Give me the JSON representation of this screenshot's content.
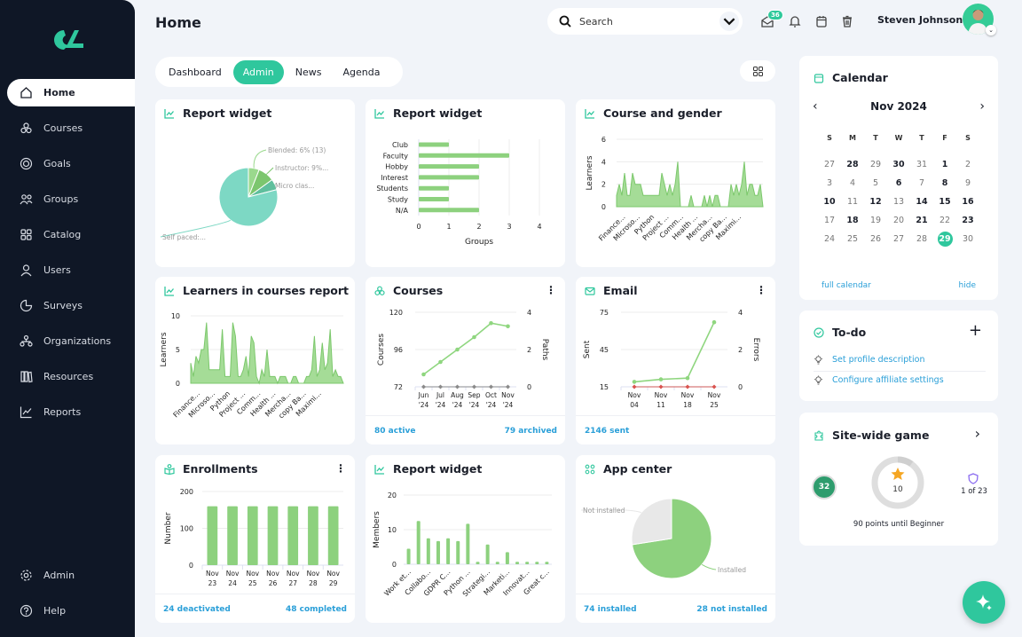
{
  "sidebar": {
    "items": [
      {
        "label": "Home",
        "icon": "home-icon",
        "active": true
      },
      {
        "label": "Courses",
        "icon": "courses-icon"
      },
      {
        "label": "Goals",
        "icon": "goals-icon"
      },
      {
        "label": "Groups",
        "icon": "groups-icon"
      },
      {
        "label": "Catalog",
        "icon": "catalog-icon"
      },
      {
        "label": "Users",
        "icon": "user-icon"
      },
      {
        "label": "Surveys",
        "icon": "surveys-icon"
      },
      {
        "label": "Organizations",
        "icon": "organizations-icon"
      },
      {
        "label": "Resources",
        "icon": "resources-icon"
      },
      {
        "label": "Reports",
        "icon": "reports-icon"
      }
    ],
    "bottom": [
      {
        "label": "Admin",
        "icon": "gear-icon"
      },
      {
        "label": "Help",
        "icon": "help-icon"
      }
    ]
  },
  "header": {
    "title": "Home",
    "search_placeholder": "Search",
    "messages_badge": "36",
    "user_name": "Steven Johnson"
  },
  "tabs": [
    {
      "label": "Dashboard"
    },
    {
      "label": "Admin",
      "active": true
    },
    {
      "label": "News"
    },
    {
      "label": "Agenda"
    }
  ],
  "colors": {
    "accent": "#2fc79d",
    "chart_green": "#8dd17e",
    "link": "#2a9fd8",
    "sidebar": "#0f1726",
    "pie_teal": "#7dd8c4",
    "error_red": "#d9534f"
  },
  "widgets": {
    "w1": {
      "title": "Report widget"
    },
    "w2": {
      "title": "Report widget"
    },
    "w3": {
      "title": "Course and gender"
    },
    "w4": {
      "title": "Learners in courses report"
    },
    "w5": {
      "title": "Courses",
      "footer_left": "80 active",
      "footer_right": "79 archived"
    },
    "w6": {
      "title": "Email",
      "footer_left": "2146 sent"
    },
    "w7": {
      "title": "Enrollments",
      "footer_left": "24 deactivated",
      "footer_right": "48 completed"
    },
    "w8": {
      "title": "Report widget"
    },
    "w9": {
      "title": "App center",
      "footer_left": "74 installed",
      "footer_right": "28 not installed"
    }
  },
  "calendar": {
    "title": "Calendar",
    "month": "Nov 2024",
    "weekdays": [
      "S",
      "M",
      "T",
      "W",
      "T",
      "F",
      "S"
    ],
    "days": [
      "27",
      "28",
      "29",
      "30",
      "31",
      "1",
      "2",
      "3",
      "4",
      "5",
      "6",
      "7",
      "8",
      "9",
      "10",
      "11",
      "12",
      "13",
      "14",
      "15",
      "16",
      "17",
      "18",
      "19",
      "20",
      "21",
      "22",
      "23",
      "24",
      "25",
      "26",
      "27",
      "28",
      "29",
      "30"
    ],
    "bold_indices": [
      1,
      3,
      5,
      10,
      12,
      14,
      16,
      18,
      19,
      20,
      22,
      25,
      27
    ],
    "today_index": 33,
    "full_calendar": "full calendar",
    "hide": "hide"
  },
  "todo": {
    "title": "To-do",
    "items": [
      "Set profile description",
      "Configure affiliate settings"
    ]
  },
  "game": {
    "title": "Site-wide game",
    "level": "32",
    "points": "10",
    "progress_fraction": 0.1,
    "rank": "1 of 23",
    "caption": "90 points until Beginner"
  },
  "chart_data": [
    {
      "type": "pie",
      "slices": [
        {
          "label": "Blended: 6% (13)",
          "value": 6
        },
        {
          "label": "Instructor: 9%...",
          "value": 9
        },
        {
          "label": "Micro clas...",
          "value": 6
        },
        {
          "label": "Self paced:...",
          "value": 79
        }
      ]
    },
    {
      "type": "bar",
      "orientation": "horizontal",
      "categories": [
        "Club",
        "Faculty",
        "Hobby",
        "Interest",
        "Students",
        "Study",
        "N/A"
      ],
      "values": [
        1,
        3,
        2,
        2,
        1,
        1,
        2
      ],
      "xlabel": "Groups",
      "xlim": [
        0,
        4
      ],
      "x_ticks": [
        "0",
        "1",
        "2",
        "3",
        "4"
      ],
      "grid": true
    },
    {
      "type": "area",
      "ylabel": "Learners",
      "ylim": [
        0,
        6
      ],
      "y_ticks": [
        "0",
        "2",
        "4",
        "6"
      ],
      "x_labels": [
        "Finance...",
        "Microso...",
        "Python",
        "Project ...",
        "Comm...",
        "Health ...",
        "Mercha...",
        "copy Ba...",
        "Maximi..."
      ],
      "values": [
        1,
        2,
        1,
        3,
        1,
        1,
        3,
        2,
        2,
        2,
        1,
        1,
        1,
        1,
        1,
        1,
        1,
        3,
        2,
        1,
        2,
        1,
        2,
        4,
        0,
        0,
        0,
        0,
        1,
        0,
        0,
        0,
        0,
        1,
        0,
        1,
        0,
        1,
        1,
        0,
        0,
        0,
        0,
        2,
        1,
        2,
        1,
        2,
        4,
        1,
        2,
        2,
        1,
        1,
        2,
        0
      ]
    },
    {
      "type": "area",
      "ylabel": "Learners",
      "ylim": [
        0,
        10
      ],
      "y_ticks": [
        "0",
        "5",
        "10"
      ],
      "x_labels": [
        "Finance...",
        "Microso...",
        "Python",
        "Project ...",
        "Comm...",
        "Health ...",
        "Mercha...",
        "copy Ba...",
        "Maximi..."
      ],
      "values": [
        3,
        1,
        4,
        3,
        5,
        5,
        9,
        2,
        2,
        2,
        2,
        2,
        8,
        1,
        1,
        1,
        9,
        7,
        1,
        1,
        2,
        4,
        1,
        7,
        6,
        1,
        0,
        2,
        1,
        5,
        1,
        1,
        1,
        0,
        1,
        1,
        1,
        0,
        0,
        1,
        1,
        0,
        0,
        0,
        1,
        1,
        2,
        7,
        1,
        2,
        6,
        2,
        3,
        8,
        1,
        2,
        1,
        1,
        0
      ]
    },
    {
      "type": "line",
      "categories": [
        "Jun '24",
        "Jul '24",
        "Aug '24",
        "Sep '24",
        "Oct '24",
        "Nov '24"
      ],
      "ylabel": "Courses",
      "ylim": [
        72,
        120
      ],
      "y_ticks": [
        "72",
        "96",
        "120"
      ],
      "y2label": "Paths",
      "y2lim": [
        0,
        4
      ],
      "y2_ticks": [
        "0",
        "2",
        "4"
      ],
      "series": [
        {
          "name": "Courses",
          "values": [
            80,
            88,
            96,
            104,
            113,
            111
          ]
        },
        {
          "name": "Paths",
          "axis": "right",
          "values": [
            0,
            0,
            0,
            0,
            0,
            0
          ]
        }
      ]
    },
    {
      "type": "line",
      "categories": [
        "Nov 04",
        "Nov 11",
        "Nov 18",
        "Nov 25"
      ],
      "ylabel": "Sent",
      "ylim": [
        15,
        75
      ],
      "y_ticks": [
        "15",
        "45",
        "75"
      ],
      "y2label": "Errors",
      "y2lim": [
        0,
        4
      ],
      "y2_ticks": [
        "0",
        "2",
        "4"
      ],
      "series": [
        {
          "name": "Sent",
          "values": [
            19,
            21,
            22,
            67
          ]
        },
        {
          "name": "Errors",
          "axis": "right",
          "values": [
            0,
            0,
            0,
            0
          ]
        }
      ]
    },
    {
      "type": "bar",
      "categories": [
        "Nov 23",
        "Nov 24",
        "Nov 25",
        "Nov 26",
        "Nov 27",
        "Nov 28",
        "Nov 29"
      ],
      "values": [
        160,
        160,
        160,
        160,
        160,
        160,
        160
      ],
      "ylabel": "Number",
      "ylim": [
        0,
        200
      ],
      "y_ticks": [
        "0",
        "100",
        "200"
      ]
    },
    {
      "type": "bar",
      "ylabel": "Members",
      "ylim": [
        0,
        20
      ],
      "y_ticks": [
        "0",
        "10",
        "20"
      ],
      "x_labels": [
        "Work et...",
        "Collabo...",
        "GDPR C...",
        "Python ...",
        "Strategi...",
        "Marketi...",
        "Innovat...",
        "Great c..."
      ],
      "values": [
        4.5,
        12.5,
        7.5,
        6.7,
        7.5,
        6.7,
        11.7,
        0.7,
        5.7,
        0.7,
        3.5,
        0.7,
        0.7,
        0.7,
        0.7
      ]
    },
    {
      "type": "pie",
      "slices": [
        {
          "label": "Installed",
          "value": 74
        },
        {
          "label": "Not installed",
          "value": 28
        }
      ]
    }
  ]
}
